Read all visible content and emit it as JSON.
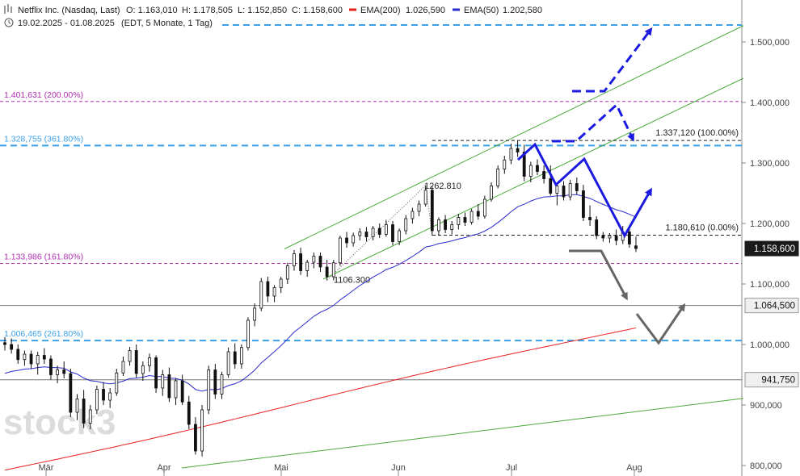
{
  "header": {
    "symbol": "Netflix Inc. (Nasdaq, Last)",
    "open": "O: 1.163,010",
    "high": "H: 1.178,505",
    "low": "L: 1.152,850",
    "close": "C: 1.158,600",
    "ema200_label": "EMA(200)",
    "ema200_value": "1.026,590",
    "ema50_label": "EMA(50)",
    "ema50_value": "1.202,580",
    "range": "19.02.2025 - 01.08.2025",
    "range_note": "(EDT, 5 Monate, 1 Tag)"
  },
  "colors": {
    "ema200": "#e8201e",
    "ema50": "#2a2acc",
    "fib_blue": "#3aa0e8",
    "fib_purple": "#b030b0",
    "channel_green": "#4aaa3a",
    "projection_blue": "#1a1ae0",
    "projection_gray": "#666666"
  },
  "watermark": "stock3",
  "chart_data": {
    "type": "candlestick",
    "x_labels": [
      "Mär",
      "Apr",
      "Mai",
      "Jun",
      "Jul",
      "Aug"
    ],
    "y_ticks": [
      {
        "v": 1500,
        "label": "1.500,000"
      },
      {
        "v": 1400,
        "label": "1.400,000"
      },
      {
        "v": 1300,
        "label": "1.300,000"
      },
      {
        "v": 1200,
        "label": "1.200,000"
      },
      {
        "v": 1100,
        "label": "1.100,000"
      },
      {
        "v": 1000,
        "label": "1.000,000"
      },
      {
        "v": 900,
        "label": "900,000"
      },
      {
        "v": 800,
        "label": "800,000"
      }
    ],
    "ylim": [
      800,
      1530
    ],
    "price_tags": [
      {
        "v": 1158.6,
        "label": "1.158,600",
        "style": "dark"
      },
      {
        "v": 1064.5,
        "label": "1.064,500",
        "style": "light"
      },
      {
        "v": 941.75,
        "label": "941,750",
        "style": "light"
      }
    ],
    "fib_levels": [
      {
        "v": 1528,
        "label": "",
        "color": "blue"
      },
      {
        "v": 1401.631,
        "label": "1.401,631 (200.00%)",
        "color": "purple"
      },
      {
        "v": 1328.755,
        "label": "1.328,755 (361.80%)",
        "color": "blue"
      },
      {
        "v": 1133.986,
        "label": "1.133,986 (161.80%)",
        "color": "purple"
      },
      {
        "v": 1006.465,
        "label": "1.006,465 (261.80%)",
        "color": "blue"
      }
    ],
    "horizontal_lines": [
      1064.5,
      941.75
    ],
    "swing_annotations": [
      {
        "label": "1.337,120 (100.00%)",
        "v": 1337.12
      },
      {
        "label": "1.180,610 (0.00%)",
        "v": 1180.61
      },
      {
        "label": "1262.810",
        "v": 1262.81
      },
      {
        "label": "1106.300",
        "v": 1106.3
      }
    ],
    "candles": [
      [
        1003,
        1012,
        990,
        1000
      ],
      [
        1000,
        1010,
        985,
        992
      ],
      [
        992,
        1000,
        968,
        975
      ],
      [
        975,
        990,
        965,
        984
      ],
      [
        984,
        990,
        960,
        968
      ],
      [
        968,
        988,
        950,
        982
      ],
      [
        982,
        994,
        968,
        976
      ],
      [
        976,
        982,
        942,
        950
      ],
      [
        950,
        965,
        936,
        958
      ],
      [
        958,
        972,
        944,
        952
      ],
      [
        952,
        960,
        880,
        888
      ],
      [
        888,
        918,
        875,
        910
      ],
      [
        910,
        925,
        862,
        870
      ],
      [
        870,
        900,
        860,
        892
      ],
      [
        892,
        932,
        885,
        926
      ],
      [
        926,
        938,
        900,
        908
      ],
      [
        908,
        928,
        895,
        920
      ],
      [
        920,
        960,
        915,
        953
      ],
      [
        953,
        980,
        948,
        972
      ],
      [
        972,
        996,
        965,
        990
      ],
      [
        990,
        1000,
        945,
        952
      ],
      [
        952,
        972,
        940,
        965
      ],
      [
        965,
        985,
        955,
        978
      ],
      [
        978,
        982,
        920,
        928
      ],
      [
        928,
        958,
        915,
        950
      ],
      [
        950,
        962,
        905,
        912
      ],
      [
        912,
        944,
        900,
        940
      ],
      [
        940,
        950,
        900,
        905
      ],
      [
        905,
        915,
        860,
        868
      ],
      [
        868,
        880,
        818,
        824
      ],
      [
        824,
        900,
        815,
        892
      ],
      [
        892,
        965,
        885,
        958
      ],
      [
        958,
        968,
        910,
        918
      ],
      [
        918,
        955,
        910,
        950
      ],
      [
        950,
        995,
        945,
        988
      ],
      [
        988,
        1002,
        960,
        968
      ],
      [
        968,
        1000,
        960,
        995
      ],
      [
        995,
        1045,
        990,
        1040
      ],
      [
        1040,
        1068,
        1030,
        1060
      ],
      [
        1060,
        1110,
        1055,
        1104
      ],
      [
        1104,
        1112,
        1070,
        1080
      ],
      [
        1080,
        1098,
        1070,
        1094
      ],
      [
        1094,
        1112,
        1085,
        1108
      ],
      [
        1108,
        1135,
        1100,
        1130
      ],
      [
        1130,
        1156,
        1122,
        1150
      ],
      [
        1150,
        1160,
        1115,
        1122
      ],
      [
        1122,
        1140,
        1112,
        1136
      ],
      [
        1136,
        1152,
        1126,
        1146
      ],
      [
        1146,
        1152,
        1120,
        1128
      ],
      [
        1128,
        1140,
        1106,
        1112
      ],
      [
        1112,
        1140,
        1106,
        1135
      ],
      [
        1135,
        1180,
        1130,
        1176
      ],
      [
        1176,
        1186,
        1160,
        1168
      ],
      [
        1168,
        1185,
        1162,
        1180
      ],
      [
        1180,
        1192,
        1172,
        1186
      ],
      [
        1186,
        1194,
        1170,
        1178
      ],
      [
        1178,
        1196,
        1172,
        1192
      ],
      [
        1192,
        1200,
        1176,
        1182
      ],
      [
        1182,
        1206,
        1178,
        1198
      ],
      [
        1198,
        1204,
        1164,
        1170
      ],
      [
        1170,
        1192,
        1164,
        1188
      ],
      [
        1188,
        1214,
        1182,
        1208
      ],
      [
        1208,
        1226,
        1200,
        1220
      ],
      [
        1220,
        1238,
        1212,
        1232
      ],
      [
        1232,
        1262.81,
        1228,
        1255
      ],
      [
        1255,
        1262,
        1180,
        1188
      ],
      [
        1188,
        1210,
        1180,
        1206
      ],
      [
        1206,
        1214,
        1184,
        1190
      ],
      [
        1190,
        1204,
        1182,
        1198
      ],
      [
        1198,
        1216,
        1190,
        1210
      ],
      [
        1210,
        1218,
        1196,
        1202
      ],
      [
        1202,
        1224,
        1198,
        1220
      ],
      [
        1220,
        1232,
        1206,
        1212
      ],
      [
        1212,
        1246,
        1208,
        1240
      ],
      [
        1240,
        1268,
        1236,
        1262
      ],
      [
        1262,
        1296,
        1258,
        1290
      ],
      [
        1290,
        1312,
        1282,
        1305
      ],
      [
        1305,
        1332,
        1298,
        1324
      ],
      [
        1324,
        1337.12,
        1310,
        1318
      ],
      [
        1318,
        1330,
        1270,
        1278
      ],
      [
        1278,
        1302,
        1268,
        1296
      ],
      [
        1296,
        1306,
        1280,
        1286
      ],
      [
        1286,
        1296,
        1266,
        1274
      ],
      [
        1274,
        1296,
        1246,
        1250
      ],
      [
        1250,
        1268,
        1230,
        1262
      ],
      [
        1262,
        1270,
        1238,
        1244
      ],
      [
        1244,
        1272,
        1238,
        1266
      ],
      [
        1266,
        1276,
        1248,
        1254
      ],
      [
        1254,
        1264,
        1204,
        1210
      ],
      [
        1210,
        1230,
        1196,
        1206
      ],
      [
        1206,
        1212,
        1174,
        1180
      ],
      [
        1180,
        1186,
        1170,
        1176
      ],
      [
        1176,
        1184,
        1168,
        1180
      ],
      [
        1180,
        1190,
        1164,
        1172
      ],
      [
        1172,
        1196,
        1166,
        1186
      ],
      [
        1186,
        1192,
        1160,
        1166
      ],
      [
        1163.01,
        1178.505,
        1152.85,
        1158.6
      ]
    ]
  }
}
